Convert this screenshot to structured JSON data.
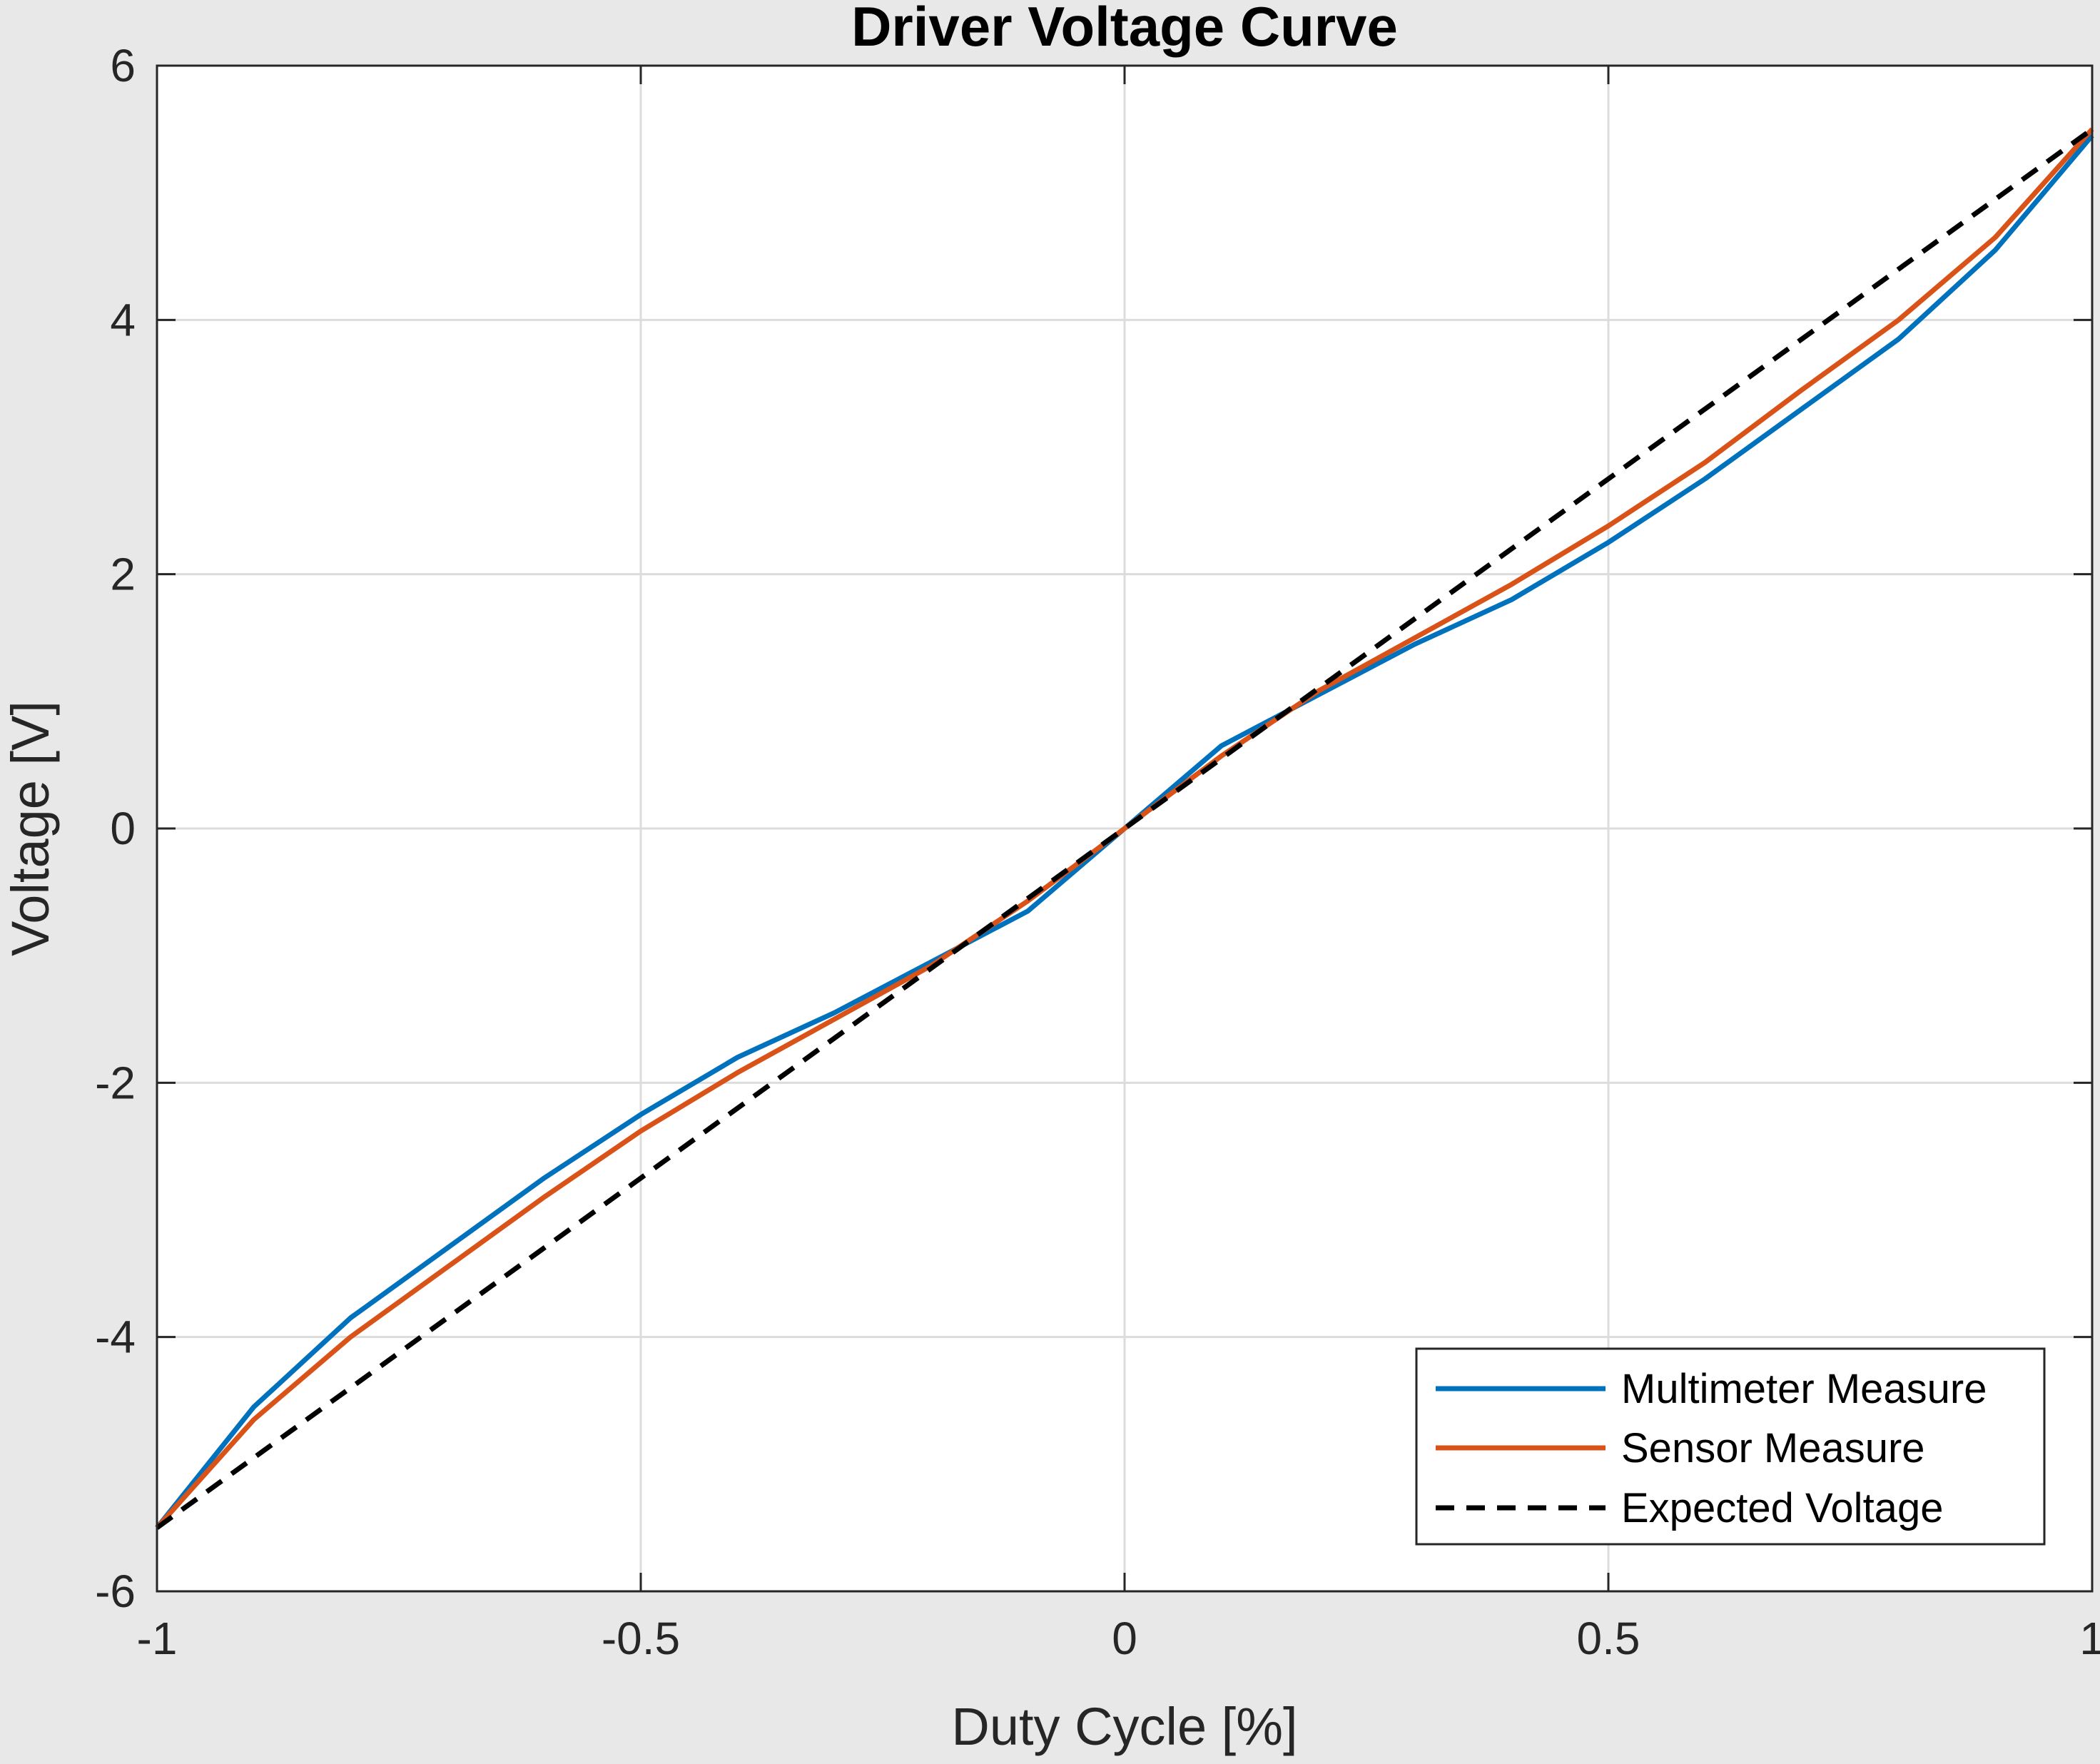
{
  "chart_data": {
    "type": "line",
    "title": "Driver Voltage Curve",
    "xlabel": "Duty Cycle [%]",
    "ylabel": "Voltage [V]",
    "xlim": [
      -1,
      1
    ],
    "ylim": [
      -6,
      6
    ],
    "x_ticks": [
      -1,
      -0.5,
      0,
      0.5,
      1
    ],
    "x_tick_labels": [
      "-1",
      "-0.5",
      "0",
      "0.5",
      "1"
    ],
    "y_ticks": [
      -6,
      -4,
      -2,
      0,
      2,
      4,
      6
    ],
    "y_tick_labels": [
      "-6",
      "-4",
      "-2",
      "0",
      "2",
      "4",
      "6"
    ],
    "grid": true,
    "legend_position": "bottom-right",
    "series": [
      {
        "name": "Multimeter Measure",
        "color": "#0072BD",
        "style": "solid",
        "x": [
          -1,
          -0.9,
          -0.8,
          -0.7,
          -0.6,
          -0.5,
          -0.4,
          -0.3,
          -0.2,
          -0.1,
          0,
          0.1,
          0.2,
          0.3,
          0.4,
          0.5,
          0.6,
          0.7,
          0.8,
          0.9,
          1
        ],
        "y": [
          -5.5,
          -4.55,
          -3.85,
          -3.3,
          -2.75,
          -2.25,
          -1.8,
          -1.45,
          -1.05,
          -0.65,
          0,
          0.65,
          1.05,
          1.45,
          1.8,
          2.25,
          2.75,
          3.3,
          3.85,
          4.55,
          5.45
        ]
      },
      {
        "name": "Sensor Measure",
        "color": "#D95319",
        "style": "solid",
        "x": [
          -1,
          -0.9,
          -0.8,
          -0.7,
          -0.6,
          -0.5,
          -0.4,
          -0.3,
          -0.2,
          -0.1,
          0,
          0.1,
          0.2,
          0.3,
          0.4,
          0.5,
          0.6,
          0.7,
          0.8,
          0.9,
          1
        ],
        "y": [
          -5.5,
          -4.65,
          -4.0,
          -3.45,
          -2.9,
          -2.38,
          -1.92,
          -1.5,
          -1.08,
          -0.57,
          0,
          0.57,
          1.08,
          1.5,
          1.92,
          2.38,
          2.88,
          3.45,
          4.0,
          4.65,
          5.5
        ]
      },
      {
        "name": "Expected Voltage",
        "color": "#000000",
        "style": "dashed",
        "x": [
          -1,
          1
        ],
        "y": [
          -5.5,
          5.5
        ]
      }
    ]
  }
}
